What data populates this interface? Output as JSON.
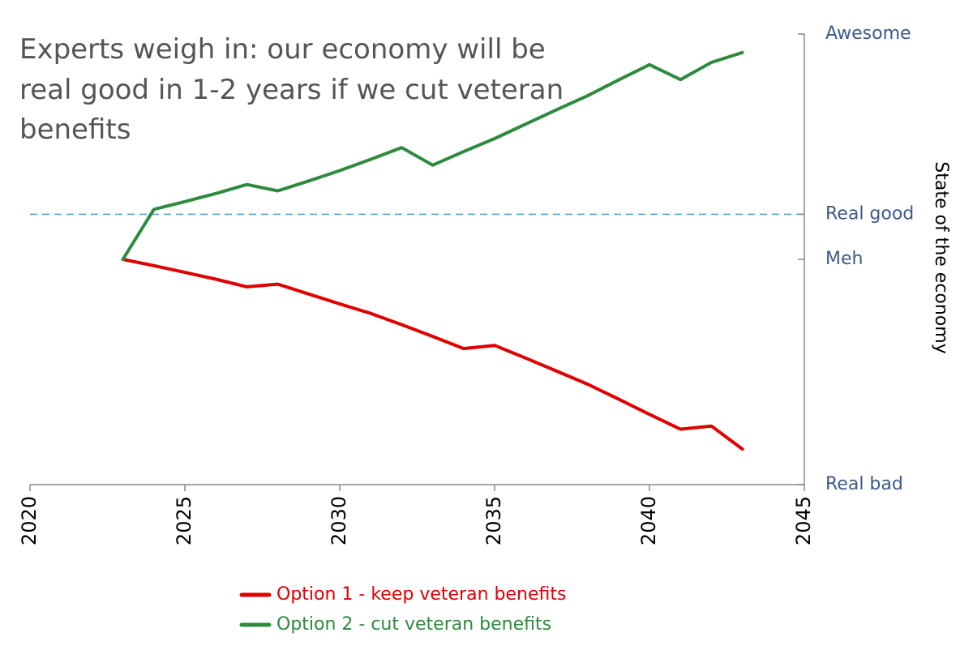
{
  "chart_data": {
    "type": "line",
    "title_lines": [
      "Experts weigh in: our economy will be",
      "real good in 1-2 years if we cut veteran",
      "benefits"
    ],
    "xlabel": "",
    "ylabel": "State of the economy",
    "xlim": [
      2020,
      2045
    ],
    "ylim": [
      0,
      100
    ],
    "x_ticks": [
      "2020",
      "2025",
      "2030",
      "2035",
      "2040",
      "2045"
    ],
    "y_ticks": [
      {
        "label": "Awesome",
        "value": 100
      },
      {
        "label": "Real good",
        "value": 60
      },
      {
        "label": "Meh",
        "value": 50
      },
      {
        "label": "Real bad",
        "value": 0
      }
    ],
    "reference_line": {
      "value": 60,
      "style": "dashed",
      "color": "#4ba3d6"
    },
    "y_axis_side": "right",
    "grid": false,
    "legend_position": "bottom",
    "series": [
      {
        "name": "Option 1 - keep veteran benefits",
        "color": "#e00000",
        "x": [
          2023,
          2024,
          2025,
          2026,
          2027,
          2028,
          2029,
          2030,
          2031,
          2032,
          2033,
          2034,
          2035,
          2036,
          2037,
          2038,
          2039,
          2040,
          2041,
          2042,
          2043
        ],
        "y": [
          50,
          48.6,
          47.1,
          45.6,
          43.9,
          44.5,
          42.3,
          40.1,
          38,
          35.5,
          32.9,
          30.2,
          30.9,
          28.1,
          25.2,
          22.3,
          19,
          15.6,
          12.3,
          13,
          7.9
        ]
      },
      {
        "name": "Option 2 - cut veteran benefits",
        "color": "#2e8b3e",
        "x": [
          2023,
          2024,
          2025,
          2026,
          2027,
          2028,
          2029,
          2030,
          2031,
          2032,
          2033,
          2034,
          2035,
          2036,
          2037,
          2038,
          2039,
          2040,
          2041,
          2042,
          2043
        ],
        "y": [
          50,
          61.1,
          62.8,
          64.6,
          66.6,
          65.2,
          67.4,
          69.7,
          72.2,
          74.8,
          70.9,
          73.9,
          76.8,
          80,
          83.2,
          86.3,
          89.8,
          93.2,
          89.9,
          93.7,
          95.9
        ]
      }
    ]
  }
}
